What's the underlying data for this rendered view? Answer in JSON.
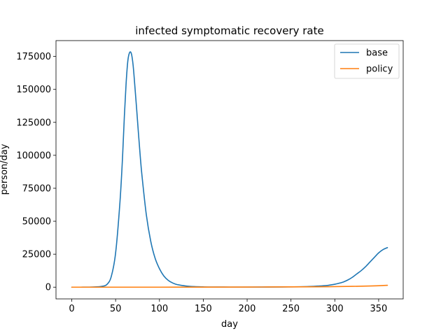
{
  "chart_data": {
    "type": "line",
    "title": "infected symptomatic recovery rate",
    "xlabel": "day",
    "ylabel": "person/day",
    "xlim": [
      -18,
      378
    ],
    "ylim": [
      -8900,
      187000
    ],
    "xticks": [
      0,
      50,
      100,
      150,
      200,
      250,
      300,
      350
    ],
    "yticks": [
      0,
      25000,
      50000,
      75000,
      100000,
      125000,
      150000,
      175000
    ],
    "grid": false,
    "legend_position": "top-right",
    "series": [
      {
        "name": "base",
        "color": "#1f77b4",
        "x": [
          0,
          10,
          20,
          30,
          35,
          40,
          45,
          50,
          55,
          58,
          60,
          62,
          64,
          66,
          68,
          70,
          72,
          74,
          76,
          78,
          80,
          85,
          90,
          95,
          100,
          105,
          110,
          115,
          120,
          130,
          140,
          150,
          160,
          180,
          200,
          220,
          240,
          260,
          270,
          280,
          290,
          300,
          305,
          310,
          315,
          320,
          325,
          330,
          335,
          340,
          345,
          350,
          355,
          360
        ],
        "y": [
          0,
          0,
          50,
          300,
          700,
          2000,
          8000,
          26000,
          65000,
          100000,
          130000,
          155000,
          172000,
          178000,
          177000,
          168000,
          152000,
          135000,
          117000,
          100000,
          85000,
          55000,
          35000,
          22000,
          14000,
          8500,
          5200,
          3200,
          2000,
          900,
          400,
          200,
          100,
          60,
          60,
          80,
          150,
          300,
          500,
          800,
          1200,
          2200,
          3000,
          4000,
          5500,
          7500,
          10000,
          12500,
          15500,
          19000,
          22500,
          26000,
          28500,
          30000
        ]
      },
      {
        "name": "policy",
        "color": "#ff7f0e",
        "x": [
          0,
          50,
          100,
          150,
          200,
          250,
          280,
          300,
          320,
          340,
          350,
          360
        ],
        "y": [
          0,
          0,
          0,
          50,
          100,
          200,
          300,
          400,
          600,
          900,
          1100,
          1400
        ]
      }
    ]
  }
}
